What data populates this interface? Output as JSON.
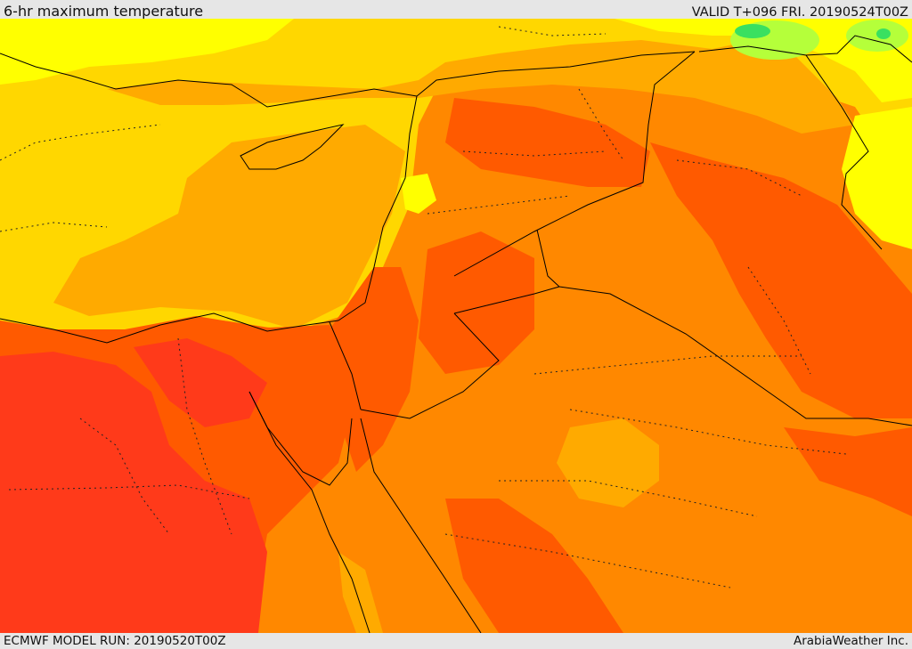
{
  "header": {
    "title": "6-hr maximum temperature",
    "valid": "VALID T+096 FRI. 20190524T00Z"
  },
  "footer": {
    "model_run": "ECMWF MODEL RUN: 20190520T00Z",
    "credit": "ArabiaWeather Inc."
  },
  "colors": {
    "yellow": "#ffff00",
    "gold": "#ffd700",
    "amber": "#ffaa00",
    "orange": "#ff8800",
    "red_orange": "#ff5a00",
    "red": "#ff3a1a",
    "light_green": "#b5ff3a",
    "green": "#3ae060",
    "border": "#000000"
  }
}
